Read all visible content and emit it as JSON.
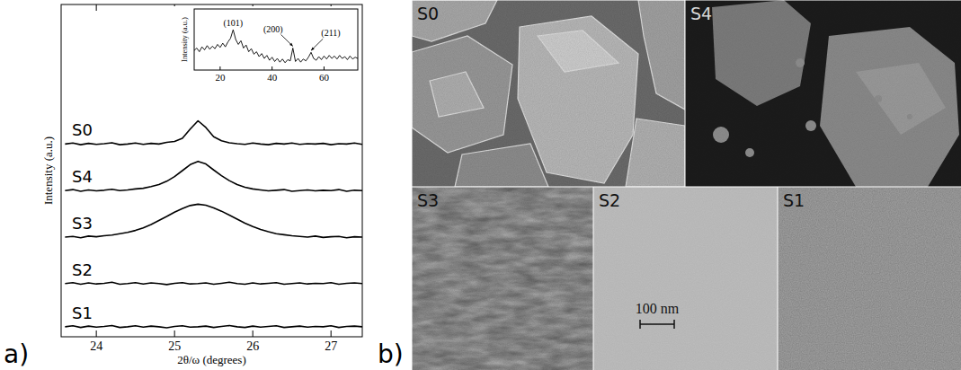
{
  "chart_data": [
    {
      "type": "line",
      "x_label": "2θ/ω (degrees)",
      "y_label": "Intensity (a.u.)",
      "x": [
        23.6,
        23.7,
        23.8,
        23.9,
        24.0,
        24.1,
        24.2,
        24.3,
        24.4,
        24.5,
        24.6,
        24.7,
        24.8,
        24.9,
        25.0,
        25.1,
        25.2,
        25.3,
        25.4,
        25.5,
        25.6,
        25.7,
        25.8,
        25.9,
        26.0,
        26.1,
        26.2,
        26.3,
        26.4,
        26.5,
        26.6,
        26.7,
        26.8,
        26.9,
        27.0,
        27.1,
        27.2,
        27.3,
        27.4
      ],
      "series": [
        {
          "name": "S0",
          "color": "#000000",
          "values": [
            5.8,
            5.83,
            5.78,
            5.82,
            5.79,
            5.81,
            5.84,
            5.78,
            5.8,
            5.83,
            5.79,
            5.82,
            5.8,
            5.85,
            5.88,
            5.97,
            6.25,
            6.5,
            6.3,
            6.02,
            5.9,
            5.84,
            5.81,
            5.79,
            5.83,
            5.8,
            5.78,
            5.82,
            5.8,
            5.83,
            5.79,
            5.81,
            5.8,
            5.82,
            5.78,
            5.81,
            5.8,
            5.83,
            5.79
          ]
        },
        {
          "name": "S4",
          "color": "#000000",
          "values": [
            4.4,
            4.43,
            4.38,
            4.42,
            4.39,
            4.41,
            4.44,
            4.4,
            4.42,
            4.45,
            4.47,
            4.52,
            4.58,
            4.68,
            4.82,
            5.0,
            5.18,
            5.28,
            5.2,
            5.02,
            4.85,
            4.7,
            4.58,
            4.5,
            4.45,
            4.42,
            4.39,
            4.41,
            4.43,
            4.38,
            4.4,
            4.42,
            4.39,
            4.41,
            4.4,
            4.43,
            4.38,
            4.41,
            4.4
          ]
        },
        {
          "name": "S3",
          "color": "#000000",
          "values": [
            3.0,
            3.02,
            2.98,
            3.03,
            3.01,
            3.04,
            3.06,
            3.1,
            3.14,
            3.2,
            3.28,
            3.38,
            3.5,
            3.62,
            3.75,
            3.86,
            3.95,
            3.99,
            3.96,
            3.88,
            3.78,
            3.66,
            3.54,
            3.42,
            3.32,
            3.23,
            3.16,
            3.1,
            3.07,
            3.04,
            3.02,
            3.0,
            3.03,
            2.99,
            3.01,
            3.02,
            2.98,
            3.01,
            3.0
          ]
        },
        {
          "name": "S2",
          "color": "#000000",
          "values": [
            1.6,
            1.63,
            1.58,
            1.62,
            1.59,
            1.61,
            1.64,
            1.58,
            1.6,
            1.63,
            1.59,
            1.62,
            1.6,
            1.57,
            1.61,
            1.63,
            1.59,
            1.6,
            1.62,
            1.58,
            1.61,
            1.64,
            1.6,
            1.58,
            1.62,
            1.59,
            1.61,
            1.63,
            1.58,
            1.6,
            1.62,
            1.59,
            1.61,
            1.6,
            1.63,
            1.58,
            1.61,
            1.62,
            1.6
          ]
        },
        {
          "name": "S1",
          "color": "#000000",
          "values": [
            0.3,
            0.33,
            0.28,
            0.32,
            0.29,
            0.31,
            0.34,
            0.28,
            0.3,
            0.33,
            0.29,
            0.32,
            0.3,
            0.27,
            0.31,
            0.33,
            0.29,
            0.3,
            0.32,
            0.28,
            0.31,
            0.34,
            0.3,
            0.28,
            0.32,
            0.29,
            0.31,
            0.33,
            0.28,
            0.3,
            0.32,
            0.29,
            0.31,
            0.3,
            0.33,
            0.28,
            0.31,
            0.32,
            0.3
          ]
        }
      ],
      "xlim": [
        23.55,
        27.4
      ],
      "ylim": [
        0,
        10
      ],
      "xticks": [
        24,
        25,
        26,
        27
      ],
      "tick_labels": "x"
    },
    {
      "type": "line",
      "y_label": "Intensity (a.u.)",
      "x": [
        10,
        11,
        12,
        13,
        14,
        15,
        16,
        17,
        18,
        19,
        20,
        21,
        22,
        23,
        24,
        25,
        26,
        27,
        28,
        29,
        30,
        31,
        32,
        33,
        34,
        35,
        36,
        37,
        38,
        39,
        40,
        41,
        42,
        43,
        44,
        45,
        46,
        47,
        48,
        49,
        50,
        51,
        52,
        53,
        54,
        55,
        56,
        57,
        58,
        59,
        60,
        61,
        62,
        63,
        64,
        65,
        66,
        67,
        68,
        69,
        70,
        71,
        72,
        73
      ],
      "series": [
        {
          "color": "#000000",
          "values": [
            5.2,
            5.6,
            5.0,
            5.8,
            5.3,
            6.0,
            5.4,
            5.9,
            5.5,
            6.2,
            5.7,
            6.4,
            5.8,
            6.6,
            7.2,
            8.6,
            7.0,
            6.2,
            6.8,
            5.6,
            6.1,
            5.0,
            5.5,
            4.6,
            5.0,
            4.2,
            4.7,
            3.9,
            4.4,
            3.6,
            4.1,
            3.4,
            3.9,
            3.3,
            3.8,
            3.2,
            3.7,
            3.5,
            5.6,
            3.4,
            3.9,
            3.3,
            3.8,
            3.5,
            4.1,
            4.9,
            3.9,
            3.6,
            4.2,
            3.7,
            4.3,
            3.8,
            4.4,
            3.9,
            4.3,
            3.8,
            4.4,
            3.9,
            4.2,
            3.7,
            4.3,
            3.8,
            4.1,
            3.9
          ]
        }
      ],
      "annotations": [
        {
          "text": "(101)",
          "x": 25,
          "y": 8.6
        },
        {
          "text": "(200)",
          "x": 48,
          "y": 5.6
        },
        {
          "text": "(211)",
          "x": 55,
          "y": 4.9
        }
      ],
      "xlim": [
        10,
        73
      ],
      "ylim": [
        2,
        12
      ],
      "xticks": [
        20,
        40,
        60
      ],
      "tick_labels": "x"
    }
  ],
  "panel_labels": [
    "a)",
    "b)"
  ],
  "sem_images": {
    "labels": [
      "S0",
      "S4",
      "S3",
      "S2",
      "S1"
    ],
    "scale_bar": "100 nm"
  }
}
